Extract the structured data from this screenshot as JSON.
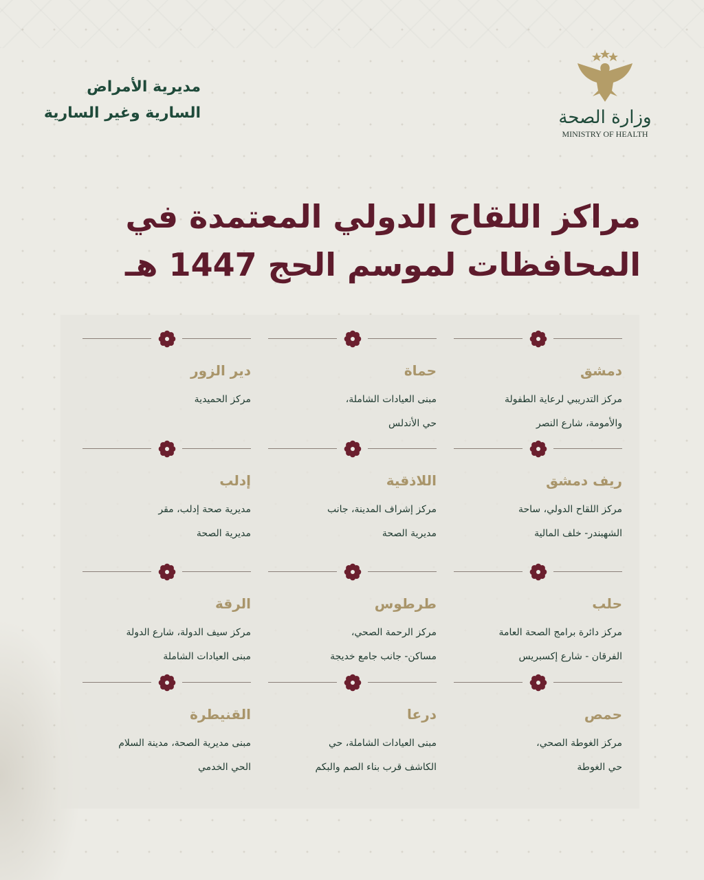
{
  "header": {
    "department_line1": "مديرية الأمراض",
    "department_line2": "السارية وغير السارية",
    "ministry_ar": "وزارة الصحة",
    "ministry_en": "MINISTRY OF HEALTH"
  },
  "title": {
    "line1": "مراكز اللقاح الدولي المعتمدة في",
    "line2": "المحافظات لموسم الحج 1447 هـ"
  },
  "colors": {
    "maroon": "#5e1b2c",
    "gold": "#a9956a",
    "green": "#1f4a3a",
    "background": "#ecebe5"
  },
  "centers": [
    {
      "province": "دمشق",
      "line1": "مركز التدريبي لرعاية الطفولة",
      "line2": "والأمومة، شارع النصر"
    },
    {
      "province": "حماة",
      "line1": "مبنى العيادات الشاملة،",
      "line2": "حي الأندلس"
    },
    {
      "province": "دير الزور",
      "line1": "مركز الحميدية",
      "line2": ""
    },
    {
      "province": "ريف دمشق",
      "line1": "مركز اللقاح الدولي، ساحة",
      "line2": "الشهبندر- خلف المالية"
    },
    {
      "province": "اللاذقية",
      "line1": "مركز إشراف المدينة، جانب",
      "line2": "مديرية الصحة"
    },
    {
      "province": "إدلب",
      "line1": "مديرية صحة إدلب، مقر",
      "line2": "مديرية الصحة"
    },
    {
      "province": "حلب",
      "line1": "مركز دائرة برامج الصحة العامة",
      "line2": "الفرقان - شارع إكسبريس"
    },
    {
      "province": "طرطوس",
      "line1": "مركز الرحمة الصحي،",
      "line2": "مساكن- جانب جامع خديجة"
    },
    {
      "province": "الرقة",
      "line1": "مركز سيف الدولة، شارع الدولة",
      "line2": "مبنى العيادات الشاملة"
    },
    {
      "province": "حمص",
      "line1": "مركز الغوطة الصحي،",
      "line2": "حي الغوطة"
    },
    {
      "province": "درعا",
      "line1": "مبنى العيادات الشاملة، حي",
      "line2": "الكاشف قرب بناء الصم والبكم"
    },
    {
      "province": "القنيطرة",
      "line1": "مبنى مديرية الصحة، مدينة السلام",
      "line2": "الحي الخدمي"
    }
  ]
}
